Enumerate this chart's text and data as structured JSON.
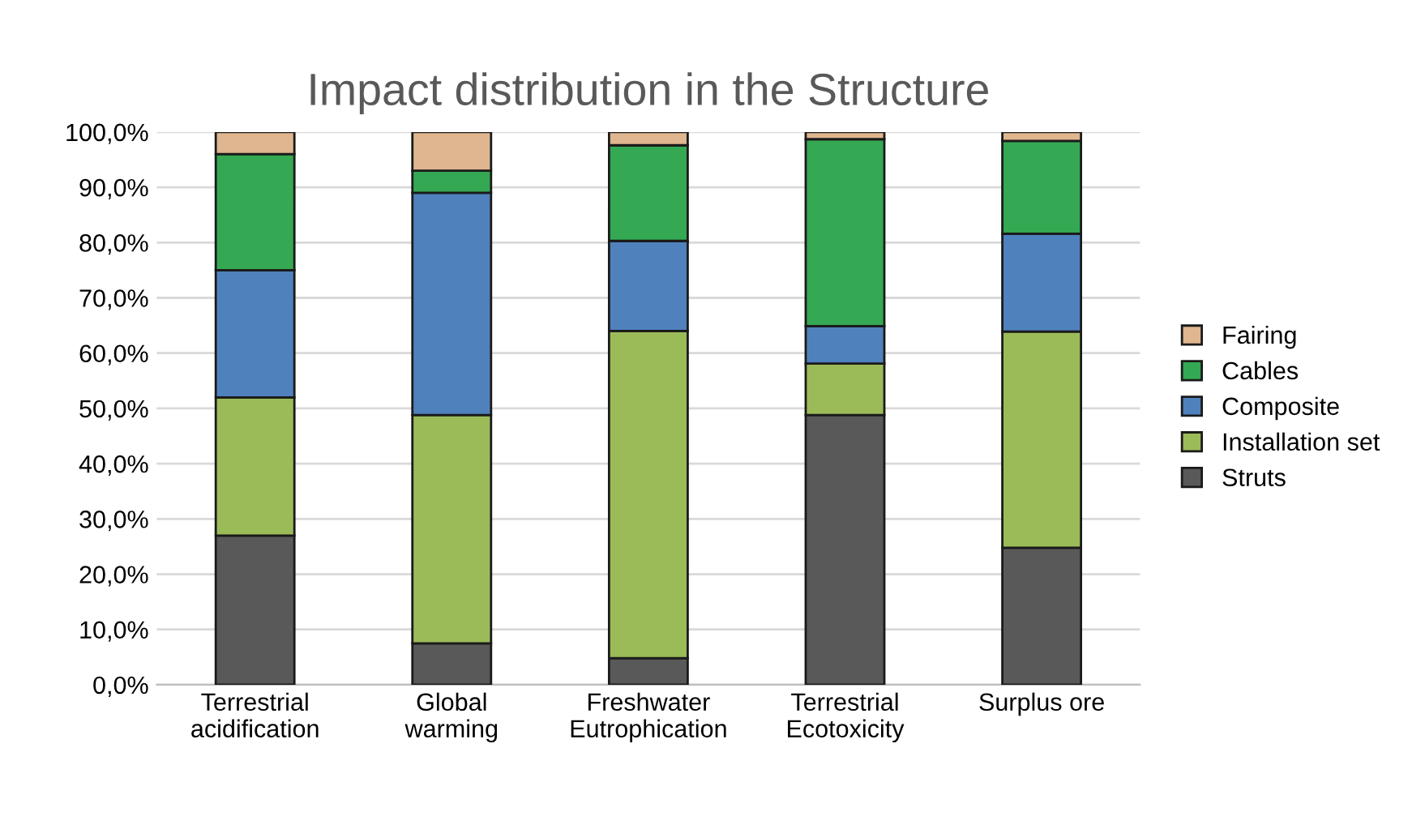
{
  "chart_data": {
    "type": "bar",
    "stacked": true,
    "title": "Impact distribution in the Structure",
    "categories": [
      "Terrestrial\nacidification",
      "Global\nwarming",
      "Freshwater\nEutrophication",
      "Terrestrial\nEcotoxicity",
      "Surplus ore"
    ],
    "series": [
      {
        "name": "Struts",
        "color": "#595959",
        "values": [
          27,
          7.5,
          4.8,
          48.8,
          24.8
        ]
      },
      {
        "name": "Installation set",
        "color": "#9bbb59",
        "values": [
          25,
          41.3,
          59.2,
          9.3,
          39.1
        ]
      },
      {
        "name": "Composite",
        "color": "#4f81bd",
        "values": [
          23,
          40.2,
          16.3,
          6.8,
          17.7
        ]
      },
      {
        "name": "Cables",
        "color": "#34a853",
        "values": [
          21,
          4,
          17.3,
          33.8,
          16.8
        ]
      },
      {
        "name": "Fairing",
        "color": "#dfb68f",
        "values": [
          4,
          7,
          2.4,
          1.3,
          1.6
        ]
      }
    ],
    "ylim": [
      0,
      100
    ],
    "yticks": [
      {
        "value": 0,
        "label": "0,0%"
      },
      {
        "value": 10,
        "label": "10,0%"
      },
      {
        "value": 20,
        "label": "20,0%"
      },
      {
        "value": 30,
        "label": "30,0%"
      },
      {
        "value": 40,
        "label": "40,0%"
      },
      {
        "value": 50,
        "label": "50,0%"
      },
      {
        "value": 60,
        "label": "60,0%"
      },
      {
        "value": 70,
        "label": "70,0%"
      },
      {
        "value": 80,
        "label": "80,0%"
      },
      {
        "value": 90,
        "label": "90,0%"
      },
      {
        "value": 100,
        "label": "100,0%"
      }
    ],
    "grid": "y",
    "legend": "right"
  }
}
